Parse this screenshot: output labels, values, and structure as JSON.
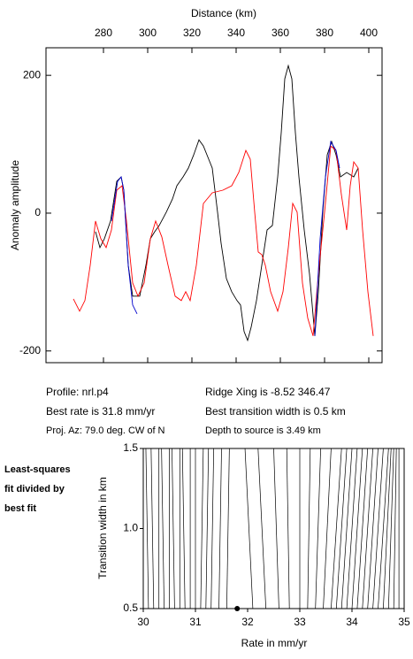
{
  "chart_data": [
    {
      "type": "line",
      "title": "Distance (km)",
      "ylabel": "Anomaly amplitude",
      "xlim": [
        254,
        406
      ],
      "ylim": [
        -217,
        240
      ],
      "xticks": [
        280,
        300,
        320,
        340,
        360,
        380,
        400
      ],
      "yticks": [
        -200,
        0,
        200
      ],
      "series": [
        {
          "color": "#000000",
          "x": [
            276.4,
            278.4,
            280.4,
            283.2,
            286,
            288,
            289.2,
            291.2,
            293.2,
            296.4,
            299.2,
            301.2,
            303.2,
            305.2,
            308.4,
            311.2,
            313.2,
            316,
            318.4,
            320.8,
            323.2,
            325.2,
            327.6,
            329.2,
            331.6,
            333.2,
            335.6,
            338,
            340.4,
            342,
            343.6,
            345.2,
            346.8,
            349.2,
            351.6,
            354,
            356.4,
            358.8,
            360.4,
            362,
            363.6,
            365.2,
            366.8,
            368.4,
            370.8,
            373.2,
            375.6,
            377.2,
            379.2,
            381.2,
            383.2,
            385.2,
            387.2,
            390,
            393.2,
            395.2
          ],
          "values": [
            -26.9,
            -50,
            -37.2,
            -11.5,
            46.2,
            52.6,
            33.3,
            -75.6,
            -120.5,
            -120.5,
            -75.6,
            -37.2,
            -26.9,
            -17.9,
            1.3,
            20.5,
            39.7,
            52.6,
            65.4,
            84.6,
            106.4,
            97.4,
            78.2,
            65.4,
            1.3,
            -43.6,
            -94.9,
            -114.1,
            -126.9,
            -133.3,
            -171.8,
            -184.6,
            -165.4,
            -126.9,
            -75.6,
            -24.4,
            -17.9,
            52.6,
            116.7,
            194.9,
            214.1,
            194.9,
            116.7,
            52.6,
            -24.4,
            -88.5,
            -178.2,
            -114.1,
            1.3,
            84.6,
            103.8,
            84.6,
            52.6,
            59,
            52.6,
            65.4
          ]
        },
        {
          "color": "#ff0000",
          "x": [
            266.4,
            269.2,
            271.6,
            274,
            276.4,
            278.8,
            281.2,
            283.6,
            286,
            288.4,
            290.4,
            293.2,
            295.6,
            298.4,
            301.2,
            303.6,
            306.4,
            309.2,
            312.4,
            315.2,
            317.2,
            319.2,
            322,
            325.2,
            329.2,
            334,
            338,
            341.2,
            344.4,
            346.4,
            348.4,
            350,
            351.6,
            353.2,
            355.6,
            358.8,
            361.2,
            363.6,
            365.6,
            367.6,
            370,
            372.4,
            374.8,
            377.2,
            380,
            382.8,
            385.2,
            387.6,
            390,
            391.6,
            393.2,
            395.2,
            397.2,
            399.6,
            402
          ],
          "values": [
            -124.4,
            -142.3,
            -126.9,
            -75.6,
            -11.5,
            -37.2,
            -50,
            -24.4,
            33.3,
            39.7,
            -11.5,
            -101.3,
            -120.5,
            -101.3,
            -37.2,
            -11.5,
            -34.6,
            -75.6,
            -120.5,
            -126.9,
            -114.1,
            -126.9,
            -75.6,
            14.1,
            29.5,
            33.3,
            39.7,
            59,
            91,
            78.2,
            1.3,
            -56.4,
            -60.3,
            -75.6,
            -114.1,
            -142.3,
            -114.1,
            -50,
            14.1,
            1.3,
            -101.3,
            -152.6,
            -178.2,
            -88.5,
            1.3,
            97.4,
            91,
            26.9,
            -24.4,
            39.7,
            74.4,
            65.4,
            -24.4,
            -114.1,
            -178.2
          ]
        },
        {
          "color": "#0000cc",
          "x": [
            283.6,
            286.4,
            288,
            289.2,
            291.2,
            293.2,
            295.2,
            null,
            375.6,
            378,
            380.4,
            382.8,
            385.2,
            386.8
          ],
          "values": [
            -11.5,
            46.2,
            52.6,
            33.3,
            -75.6,
            -133.3,
            -146.2,
            null,
            -178.2,
            -37.2,
            52.6,
            103.8,
            91,
            65.4
          ]
        }
      ]
    },
    {
      "type": "contour",
      "xlabel": "Rate in mm/yr",
      "ylabel": "Transition width in km",
      "xlim": [
        30,
        35
      ],
      "ylim": [
        0.5,
        1.5
      ],
      "xticks": [
        30,
        31,
        32,
        33,
        34,
        35
      ],
      "yticks": [
        {
          "value": 0.5,
          "label": "0.5"
        },
        {
          "value": 1.0,
          "label": "1.0"
        },
        {
          "value": 1.5,
          "label": "1.5"
        }
      ],
      "color": "#000000",
      "contour_lines": [
        [
          30.1,
          30.05
        ],
        [
          30.2,
          30.15
        ],
        [
          30.3,
          30.3
        ],
        [
          30.4,
          30.35
        ],
        [
          30.5,
          30.5
        ],
        [
          30.6,
          30.55
        ],
        [
          30.7,
          30.7
        ],
        [
          30.8,
          30.75
        ],
        [
          30.9,
          30.9
        ],
        [
          31.0,
          31.0
        ],
        [
          31.1,
          31.15
        ],
        [
          31.2,
          31.25
        ],
        [
          31.3,
          31.35
        ],
        [
          31.45,
          31.5
        ],
        [
          31.6,
          31.65
        ],
        [
          32.1,
          31.95
        ],
        [
          32.35,
          32.2
        ],
        [
          32.6,
          32.5
        ],
        [
          32.8,
          32.75
        ],
        [
          33.0,
          33.0
        ],
        [
          33.15,
          33.2
        ],
        [
          33.3,
          33.4
        ],
        [
          33.45,
          33.6
        ],
        [
          33.6,
          33.8
        ],
        [
          33.7,
          33.9
        ],
        [
          33.8,
          34.0
        ],
        [
          33.9,
          34.1
        ],
        [
          34.0,
          34.2
        ],
        [
          34.1,
          34.3
        ],
        [
          34.2,
          34.4
        ],
        [
          34.3,
          34.5
        ],
        [
          34.4,
          34.6
        ],
        [
          34.5,
          34.7
        ],
        [
          34.6,
          34.75
        ],
        [
          34.7,
          34.8
        ],
        [
          34.8,
          34.85
        ],
        [
          34.9,
          34.9
        ]
      ],
      "best_point": {
        "x": 31.8,
        "y": 0.5
      }
    }
  ],
  "info": {
    "left": [
      "Profile: nrl.p4",
      "Best rate is 31.8 mm/yr",
      "Proj. Az: 79.0 deg. CW of N"
    ],
    "right": [
      "Ridge Xing is -8.52 346.47",
      "Best transition width is 0.5 km",
      "Depth to source is   3.49 km"
    ]
  },
  "note": [
    "Least-squares",
    "fit divided by",
    "best fit"
  ]
}
